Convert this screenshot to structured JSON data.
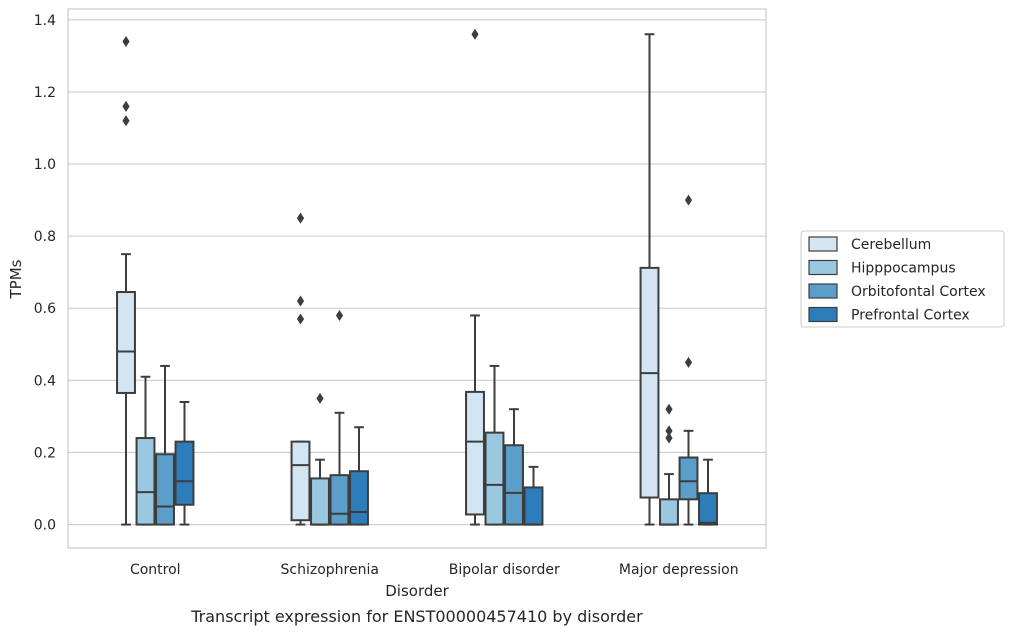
{
  "chart_data": {
    "type": "box",
    "caption": "Transcript expression for ENST00000457410 by disorder",
    "xlabel": "Disorder",
    "ylabel": "TPMs",
    "ylim": [
      -0.065,
      1.43
    ],
    "yticks": [
      "0.0",
      "0.2",
      "0.4",
      "0.6",
      "0.8",
      "1.0",
      "1.2",
      "1.4"
    ],
    "ytick_values": [
      0.0,
      0.2,
      0.4,
      0.6,
      0.8,
      1.0,
      1.2,
      1.4
    ],
    "grid": true,
    "legend_position": "right",
    "categories": [
      "Control",
      "Schizophrenia",
      "Bipolar disorder",
      "Major depression"
    ],
    "series": [
      {
        "name": "Cerebellum",
        "color": "#d3e4f3",
        "boxes": [
          {
            "whislo": 0.0,
            "q1": 0.365,
            "med": 0.48,
            "q3": 0.645,
            "whishi": 0.75,
            "fliers": [
              1.12,
              1.16,
              1.34
            ]
          },
          {
            "whislo": 0.0,
            "q1": 0.012,
            "med": 0.165,
            "q3": 0.23,
            "whishi": 0.23,
            "fliers": [
              0.57,
              0.62,
              0.85
            ]
          },
          {
            "whislo": 0.0,
            "q1": 0.028,
            "med": 0.23,
            "q3": 0.368,
            "whishi": 0.58,
            "fliers": [
              1.36
            ]
          },
          {
            "whislo": 0.0,
            "q1": 0.075,
            "med": 0.42,
            "q3": 0.712,
            "whishi": 1.36,
            "fliers": []
          }
        ]
      },
      {
        "name": "Hipppocampus",
        "color": "#9ac8e0",
        "boxes": [
          {
            "whislo": 0.0,
            "q1": 0.0,
            "med": 0.09,
            "q3": 0.24,
            "whishi": 0.41,
            "fliers": []
          },
          {
            "whislo": 0.0,
            "q1": 0.0,
            "med": 0.0,
            "q3": 0.128,
            "whishi": 0.18,
            "fliers": [
              0.35
            ]
          },
          {
            "whislo": 0.0,
            "q1": 0.0,
            "med": 0.11,
            "q3": 0.255,
            "whishi": 0.44,
            "fliers": []
          },
          {
            "whislo": 0.0,
            "q1": 0.0,
            "med": 0.0,
            "q3": 0.07,
            "whishi": 0.14,
            "fliers": [
              0.24,
              0.26,
              0.32
            ]
          }
        ]
      },
      {
        "name": "Orbitofontal Cortex",
        "color": "#5b9ec9",
        "boxes": [
          {
            "whislo": 0.0,
            "q1": 0.0,
            "med": 0.05,
            "q3": 0.195,
            "whishi": 0.44,
            "fliers": []
          },
          {
            "whislo": 0.0,
            "q1": 0.0,
            "med": 0.03,
            "q3": 0.137,
            "whishi": 0.31,
            "fliers": [
              0.58
            ]
          },
          {
            "whislo": 0.0,
            "q1": 0.0,
            "med": 0.088,
            "q3": 0.22,
            "whishi": 0.32,
            "fliers": []
          },
          {
            "whislo": 0.0,
            "q1": 0.07,
            "med": 0.12,
            "q3": 0.186,
            "whishi": 0.26,
            "fliers": [
              0.45,
              0.9
            ]
          }
        ]
      },
      {
        "name": "Prefrontal Cortex",
        "color": "#2d7dbb",
        "boxes": [
          {
            "whislo": 0.0,
            "q1": 0.055,
            "med": 0.12,
            "q3": 0.23,
            "whishi": 0.34,
            "fliers": []
          },
          {
            "whislo": 0.0,
            "q1": 0.0,
            "med": 0.035,
            "q3": 0.148,
            "whishi": 0.27,
            "fliers": []
          },
          {
            "whislo": 0.0,
            "q1": 0.0,
            "med": 0.0,
            "q3": 0.103,
            "whishi": 0.16,
            "fliers": []
          },
          {
            "whislo": 0.0,
            "q1": 0.0,
            "med": 0.005,
            "q3": 0.087,
            "whishi": 0.18,
            "fliers": []
          }
        ]
      }
    ]
  }
}
